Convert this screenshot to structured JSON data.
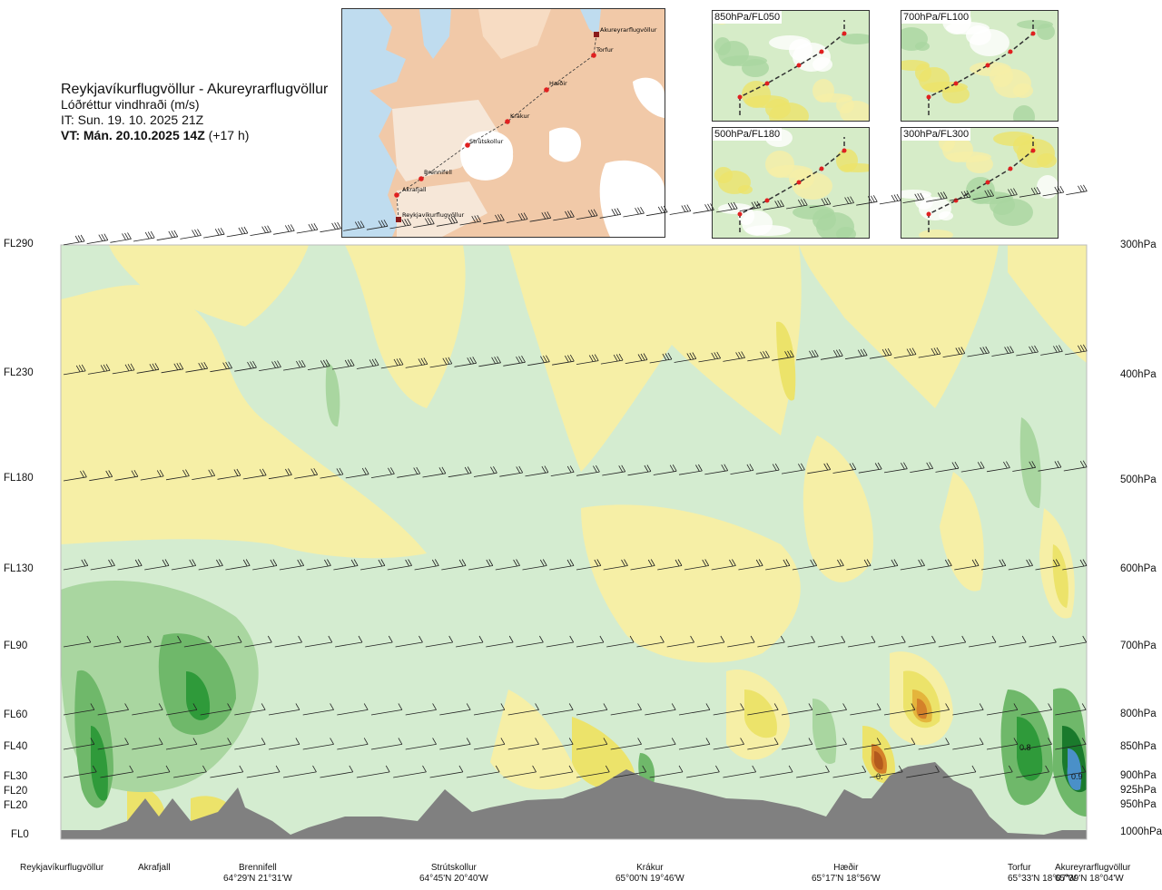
{
  "header": {
    "route": "Reykjavíkurflugvöllur - Akureyrarflugvöllur",
    "variable": "Lóðréttur vindhraði (m/s)",
    "issue_time": "IT: Sun. 19. 10. 2025 21Z",
    "valid_time_bold": "VT: Mán. 20.10.2025 14Z",
    "valid_time_offset": "(+17 h)"
  },
  "map": {
    "waypoints": [
      "Akureyrarflugvöllur",
      "Torfur",
      "Hæðir",
      "Krákur",
      "Strútskollur",
      "Brennifell",
      "Akrafjall",
      "Reykjavíkurflugvöllur"
    ]
  },
  "mini_panels": [
    {
      "label": "850hPa/FL050"
    },
    {
      "label": "700hPa/FL100"
    },
    {
      "label": "500hPa/FL180"
    },
    {
      "label": "300hPa/FL300"
    }
  ],
  "flight_levels": [
    "FL290",
    "FL230",
    "FL180",
    "FL130",
    "FL90",
    "FL60",
    "FL40",
    "FL30",
    "FL20",
    "FL20",
    "FL0"
  ],
  "pressure_levels": [
    "300hPa",
    "400hPa",
    "500hPa",
    "600hPa",
    "700hPa",
    "800hPa",
    "850hPa",
    "900hPa",
    "925hPa",
    "950hPa",
    "1000hPa"
  ],
  "locations": [
    {
      "name": "Reykjavíkurflugvöllur",
      "coord": ""
    },
    {
      "name": "Akrafjall",
      "coord": ""
    },
    {
      "name": "Brennifell",
      "coord": "64°29'N 21°31'W"
    },
    {
      "name": "Strútskollur",
      "coord": "64°45'N 20°40'W"
    },
    {
      "name": "Krákur",
      "coord": "65°00'N 19°46'W"
    },
    {
      "name": "Hæðir",
      "coord": "65°17'N 18°56'W"
    },
    {
      "name": "Torfur",
      "coord": "65°33'N 18°07'W"
    },
    {
      "name": "Akureyrarflugvöllur",
      "coord": "65°39'N 18°04'W"
    }
  ],
  "contour_labels": [
    "0.8",
    "0.9",
    "-0."
  ],
  "colors": {
    "rising_light": "#f6efa6",
    "rising_mid": "#ece36a",
    "rising_strong": "#e4b53c",
    "rising_stronger": "#d4812a",
    "rising_max": "#b35a1d",
    "sinking_light": "#d4ecd0",
    "sinking_mid": "#a9d6a0",
    "sinking_strong": "#6fb86a",
    "sinking_stronger": "#2f9a3a",
    "sinking_max": "#1a7a2c",
    "extreme_sink": "#4a90c8",
    "terrain": "#808080"
  }
}
